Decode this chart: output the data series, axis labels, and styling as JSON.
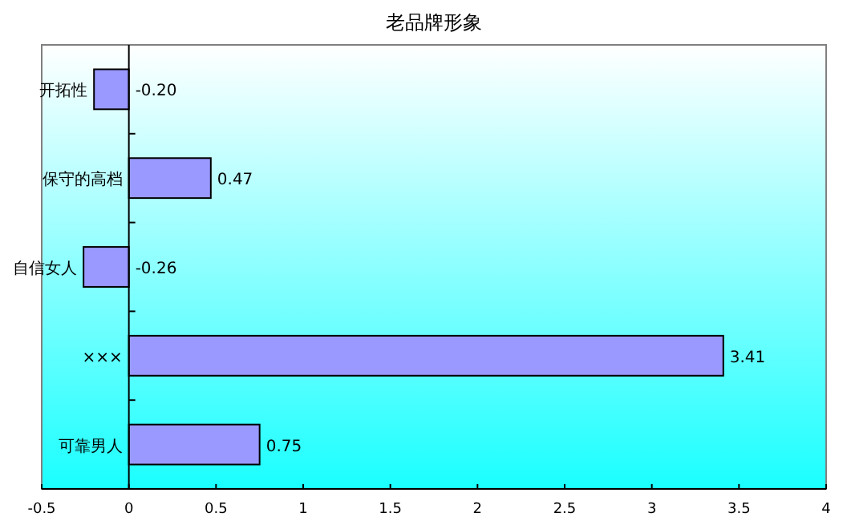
{
  "chart_data": {
    "type": "bar",
    "orientation": "horizontal",
    "title": "老品牌形象",
    "categories": [
      "开拓性",
      "保守的高档",
      "自信女人",
      "×××",
      "可靠男人"
    ],
    "values": [
      -0.2,
      0.47,
      -0.26,
      3.41,
      0.75
    ],
    "value_labels": [
      "-0.20",
      "0.47",
      "-0.26",
      "3.41",
      "0.75"
    ],
    "color": "#9999ff",
    "xlim": [
      -0.5,
      4
    ],
    "xticks": [
      -0.5,
      0,
      0.5,
      1,
      1.5,
      2,
      2.5,
      3,
      3.5,
      4
    ]
  }
}
